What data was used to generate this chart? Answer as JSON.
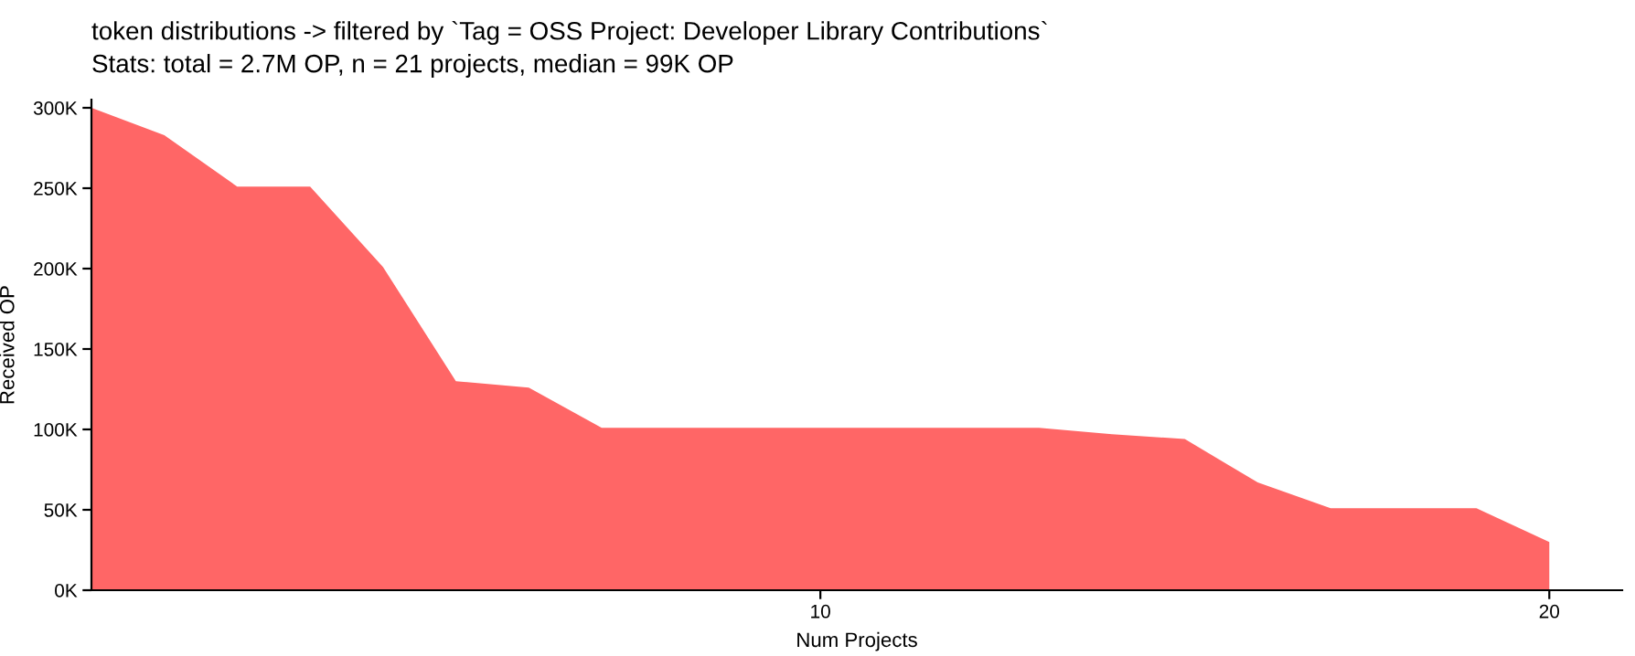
{
  "chart_data": {
    "type": "area",
    "title": "token distributions -> filtered by `Tag = OSS Project: Developer Library Contributions`",
    "subtitle": "Stats: total = 2.7M OP, n = 21 projects, median = 99K OP",
    "xlabel": "Num Projects",
    "ylabel": "Received OP",
    "x": [
      0,
      1,
      2,
      3,
      4,
      5,
      6,
      7,
      8,
      9,
      10,
      11,
      12,
      13,
      14,
      15,
      16,
      17,
      18,
      19,
      20
    ],
    "series": [
      {
        "color": "#ff6666",
        "values": [
          300000,
          283000,
          251000,
          251000,
          201000,
          130000,
          126000,
          101000,
          101000,
          101000,
          101000,
          101000,
          101000,
          101000,
          97000,
          94000,
          67000,
          51000,
          51000,
          51000,
          30000
        ]
      }
    ],
    "xlim": [
      0,
      21
    ],
    "xticks": [
      10,
      20
    ],
    "ylim": [
      0,
      305000
    ],
    "yticks": [
      {
        "value": 0,
        "label": "0K"
      },
      {
        "value": 50000,
        "label": "50K"
      },
      {
        "value": 100000,
        "label": "100K"
      },
      {
        "value": 150000,
        "label": "150K"
      },
      {
        "value": 200000,
        "label": "200K"
      },
      {
        "value": 250000,
        "label": "250K"
      },
      {
        "value": 300000,
        "label": "300K"
      }
    ],
    "grid": false,
    "legend": false
  }
}
